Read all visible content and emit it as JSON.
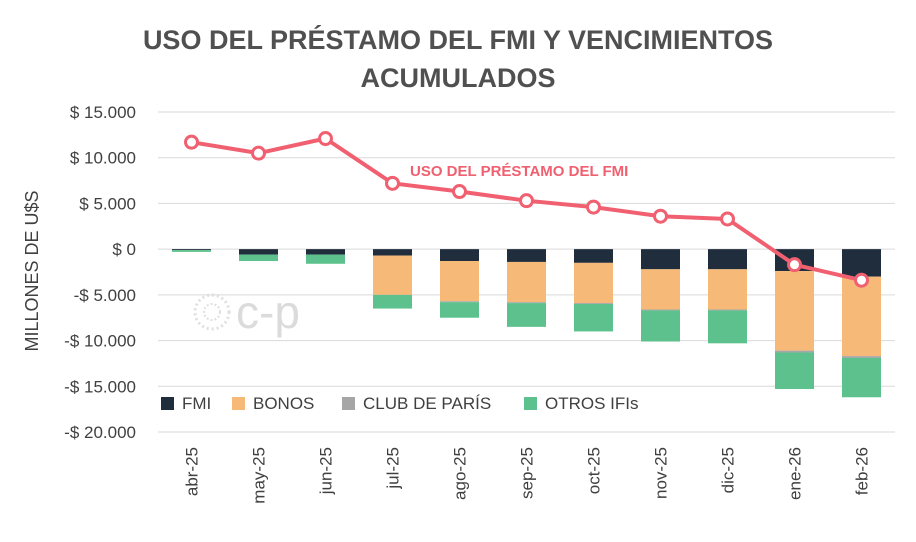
{
  "chart_data": {
    "type": "bar",
    "subtype": "stacked-bar-with-line",
    "title_line1": "USO DEL PRÉSTAMO DEL FMI Y VENCIMIENTOS",
    "title_line2": "ACUMULADOS",
    "ylabel": "MILLONES DE U$S",
    "ylim": [
      -20000,
      15000
    ],
    "yticks": [
      15000,
      10000,
      5000,
      0,
      -5000,
      -10000,
      -15000,
      -20000
    ],
    "ytick_labels": [
      "$ 15.000",
      "$ 10.000",
      "$ 5.000",
      "$ 0",
      "-$ 5.000",
      "-$ 10.000",
      "-$ 15.000",
      "-$ 20.000"
    ],
    "grid": true,
    "legend_position": "bottom-left inside plot",
    "categories": [
      "abr-25",
      "may-25",
      "jun-25",
      "jul-25",
      "ago-25",
      "sep-25",
      "oct-25",
      "nov-25",
      "dic-25",
      "ene-26",
      "feb-26"
    ],
    "series": [
      {
        "name": "FMI",
        "color": "#1f2d3d",
        "values": [
          -100,
          -600,
          -600,
          -700,
          -1300,
          -1400,
          -1500,
          -2200,
          -2200,
          -2400,
          -3000
        ]
      },
      {
        "name": "BONOS",
        "color": "#f6b977",
        "values": [
          0,
          0,
          0,
          -4300,
          -4400,
          -4400,
          -4400,
          -4400,
          -4400,
          -8700,
          -8700
        ]
      },
      {
        "name": "CLUB DE PARÍS",
        "color": "#a6a6a6",
        "values": [
          0,
          0,
          0,
          0,
          -100,
          -100,
          -100,
          -100,
          -100,
          -200,
          -200
        ]
      },
      {
        "name": "OTROS IFIs",
        "color": "#5cc18c",
        "values": [
          -200,
          -700,
          -1000,
          -1500,
          -1700,
          -2600,
          -3000,
          -3400,
          -3600,
          -4000,
          -4300
        ]
      }
    ],
    "line_series": {
      "name": "USO DEL PRÉSTAMO DEL FMI",
      "color": "#f06070",
      "values": [
        11700,
        10500,
        12100,
        7200,
        6300,
        5300,
        4600,
        3600,
        3300,
        -1700,
        -3400
      ]
    },
    "watermark": "c-p"
  }
}
